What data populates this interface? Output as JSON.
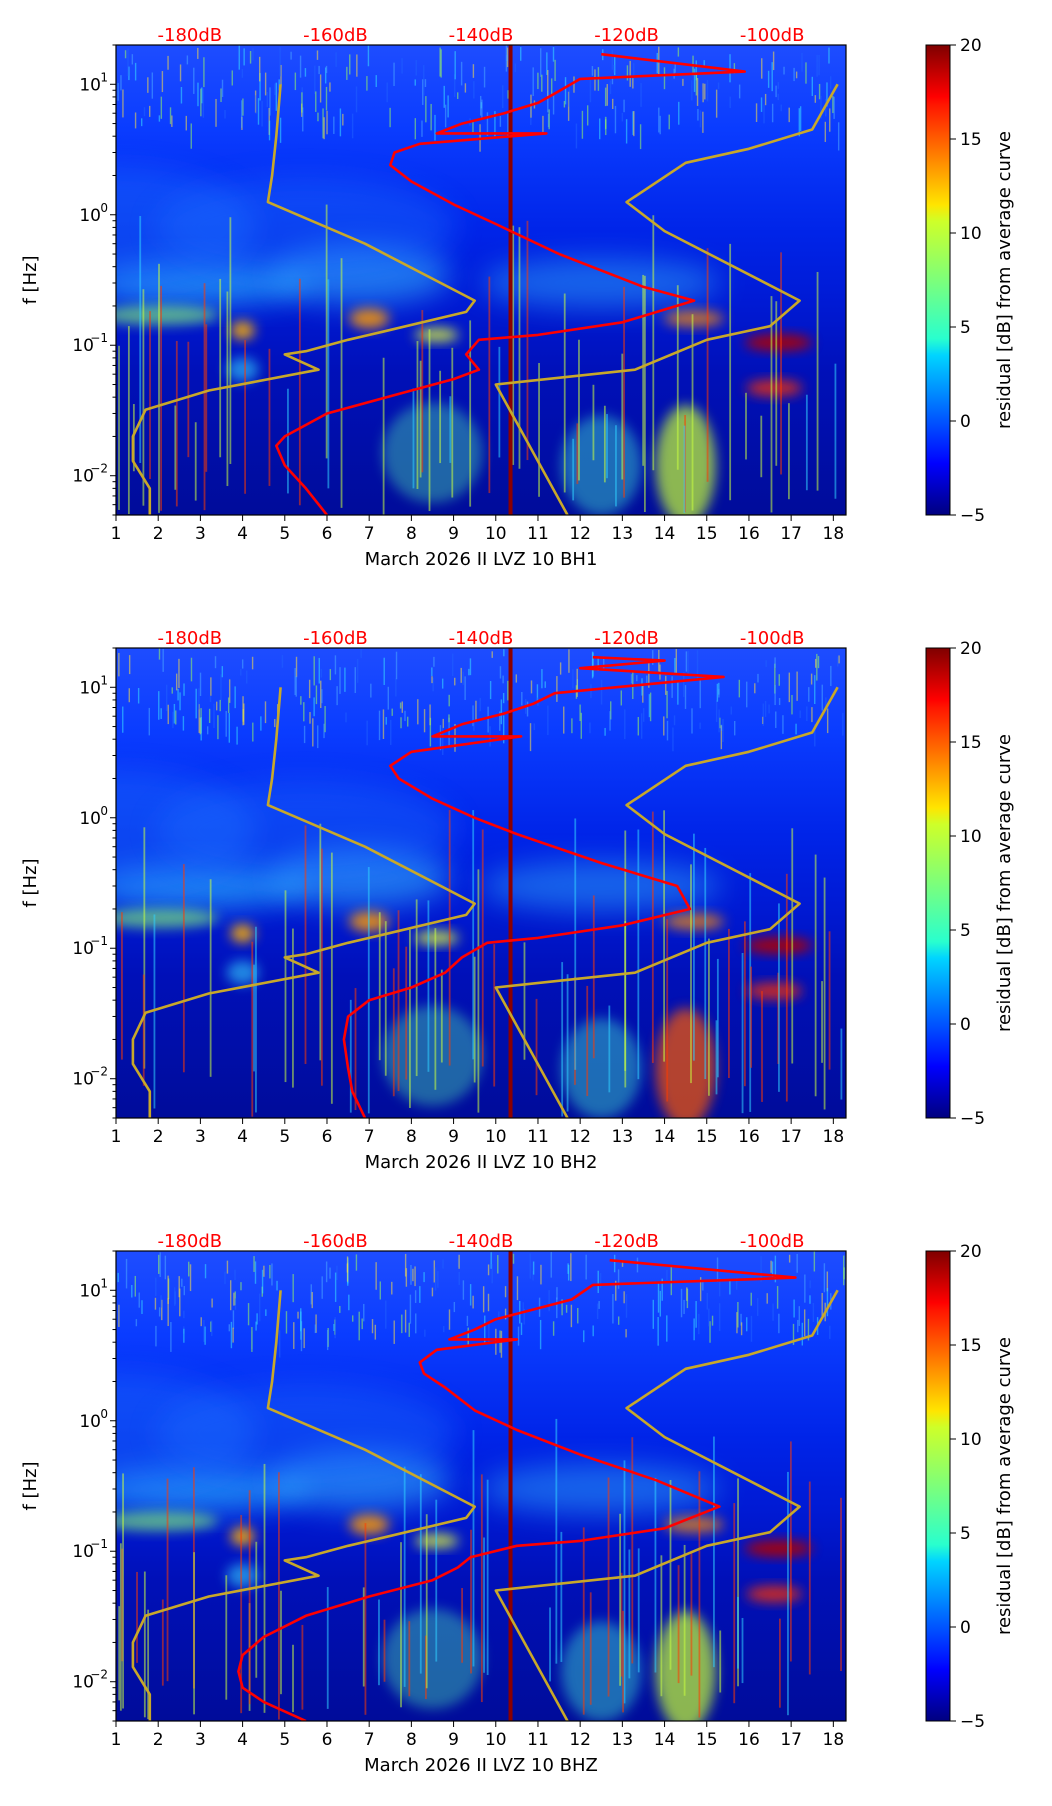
{
  "chart_data": [
    {
      "type": "heatmap",
      "xlabel": "March 2026 II LVZ 10 BH1",
      "ylabel": "f [Hz]",
      "xlim": [
        1,
        18.3
      ],
      "ylim": [
        0.005,
        20
      ],
      "y_scale": "log",
      "x_ticks": [
        "1",
        "2",
        "3",
        "4",
        "5",
        "6",
        "7",
        "8",
        "9",
        "10",
        "11",
        "12",
        "13",
        "14",
        "15",
        "16",
        "17",
        "18"
      ],
      "y_ticks": [
        {
          "value": 0.01,
          "base": "10",
          "exp": "−2"
        },
        {
          "value": 0.1,
          "base": "10",
          "exp": "−1"
        },
        {
          "value": 1,
          "base": "10",
          "exp": "0"
        },
        {
          "value": 10,
          "base": "10",
          "exp": "1"
        }
      ],
      "top_labels": [
        {
          "x": 2.75,
          "text": "-180dB"
        },
        {
          "x": 6.2,
          "text": "-160dB"
        },
        {
          "x": 9.65,
          "text": "-140dB"
        },
        {
          "x": 13.1,
          "text": "-120dB"
        },
        {
          "x": 16.55,
          "text": "-100dB"
        }
      ],
      "colorbar": {
        "label": "residual [dB] from average curve",
        "min": -5,
        "max": 20,
        "ticks": [
          "−5",
          "0",
          "5",
          "10",
          "15",
          "20"
        ]
      },
      "vertical_line_x": 10.35,
      "series": [
        {
          "color": "#c8a82a",
          "x": [
            4.9,
            4.8,
            4.7,
            4.6,
            6.9,
            9.5,
            9.3,
            7.0,
            6.5,
            5.5,
            5.0,
            5.8,
            3.2,
            1.7,
            1.4,
            1.4,
            1.8,
            1.8
          ],
          "y": [
            10,
            4,
            2,
            1.25,
            0.6,
            0.22,
            0.18,
            0.12,
            0.11,
            0.09,
            0.085,
            0.065,
            0.045,
            0.032,
            0.02,
            0.013,
            0.008,
            0.005
          ]
        },
        {
          "color": "#c8a82a",
          "x": [
            18.1,
            17.5,
            16.0,
            14.5,
            13.1,
            14.0,
            17.2,
            16.5,
            15.0,
            13.3,
            10.0,
            11.7
          ],
          "y": [
            10,
            4.5,
            3.2,
            2.5,
            1.25,
            0.75,
            0.22,
            0.14,
            0.11,
            0.065,
            0.05,
            0.005
          ]
        },
        {
          "color": "#ff0000",
          "x": [
            12.5,
            15.9,
            12.0,
            11.4,
            11.0,
            10.2,
            9.2,
            8.6,
            11.2,
            8.2,
            7.6,
            7.5,
            8.0,
            9.0,
            10.0,
            11.5,
            13.5,
            14.7,
            13.0,
            11.0,
            9.6,
            9.3,
            9.6,
            9.0,
            8.0,
            6.0,
            5.0,
            4.8,
            5.0,
            5.5,
            6.0
          ],
          "y": [
            17,
            12.5,
            11,
            8.5,
            7.2,
            6,
            5,
            4.2,
            4.2,
            3.5,
            3.0,
            2.4,
            1.8,
            1.2,
            0.85,
            0.5,
            0.28,
            0.22,
            0.15,
            0.12,
            0.11,
            0.085,
            0.065,
            0.055,
            0.045,
            0.03,
            0.02,
            0.017,
            0.012,
            0.008,
            0.005
          ]
        }
      ]
    },
    {
      "type": "heatmap",
      "xlabel": "March 2026 II LVZ 10 BH2",
      "ylabel": "f [Hz]",
      "xlim": [
        1,
        18.3
      ],
      "ylim": [
        0.005,
        20
      ],
      "y_scale": "log",
      "x_ticks": [
        "1",
        "2",
        "3",
        "4",
        "5",
        "6",
        "7",
        "8",
        "9",
        "10",
        "11",
        "12",
        "13",
        "14",
        "15",
        "16",
        "17",
        "18"
      ],
      "y_ticks": [
        {
          "value": 0.01,
          "base": "10",
          "exp": "−2"
        },
        {
          "value": 0.1,
          "base": "10",
          "exp": "−1"
        },
        {
          "value": 1,
          "base": "10",
          "exp": "0"
        },
        {
          "value": 10,
          "base": "10",
          "exp": "1"
        }
      ],
      "top_labels": [
        {
          "x": 2.75,
          "text": "-180dB"
        },
        {
          "x": 6.2,
          "text": "-160dB"
        },
        {
          "x": 9.65,
          "text": "-140dB"
        },
        {
          "x": 13.1,
          "text": "-120dB"
        },
        {
          "x": 16.55,
          "text": "-100dB"
        }
      ],
      "colorbar": {
        "label": "residual [dB] from average curve",
        "min": -5,
        "max": 20,
        "ticks": [
          "−5",
          "0",
          "5",
          "10",
          "15",
          "20"
        ]
      },
      "vertical_line_x": 10.35,
      "series": [
        {
          "color": "#c8a82a",
          "x": [
            4.9,
            4.8,
            4.7,
            4.6,
            6.9,
            9.5,
            9.3,
            7.0,
            6.5,
            5.5,
            5.0,
            5.8,
            3.2,
            1.7,
            1.4,
            1.4,
            1.8,
            1.8
          ],
          "y": [
            10,
            4,
            2,
            1.25,
            0.6,
            0.22,
            0.18,
            0.12,
            0.11,
            0.09,
            0.085,
            0.065,
            0.045,
            0.032,
            0.02,
            0.013,
            0.008,
            0.005
          ]
        },
        {
          "color": "#c8a82a",
          "x": [
            18.1,
            17.5,
            16.0,
            14.5,
            13.1,
            14.0,
            17.2,
            16.5,
            15.0,
            13.3,
            10.0,
            11.7
          ],
          "y": [
            10,
            4.5,
            3.2,
            2.5,
            1.25,
            0.75,
            0.22,
            0.14,
            0.11,
            0.065,
            0.05,
            0.005
          ]
        },
        {
          "color": "#ff0000",
          "x": [
            12.3,
            14.0,
            12.0,
            15.4,
            11.4,
            10.9,
            10.2,
            9.2,
            8.5,
            10.6,
            8.0,
            7.5,
            7.7,
            8.5,
            9.5,
            10.5,
            12.5,
            14.3,
            14.6,
            13.0,
            11.0,
            9.8,
            9.2,
            8.8,
            8.0,
            7.0,
            6.5,
            6.4,
            6.5,
            6.6,
            6.9
          ],
          "y": [
            17,
            16,
            14,
            12,
            9,
            7.5,
            6.3,
            5.2,
            4.2,
            4.2,
            3.2,
            2.5,
            2.0,
            1.4,
            1.0,
            0.75,
            0.45,
            0.3,
            0.2,
            0.15,
            0.12,
            0.11,
            0.085,
            0.065,
            0.05,
            0.04,
            0.03,
            0.02,
            0.012,
            0.008,
            0.005
          ]
        }
      ]
    },
    {
      "type": "heatmap",
      "xlabel": "March 2026 II LVZ 10 BHZ",
      "ylabel": "f [Hz]",
      "xlim": [
        1,
        18.3
      ],
      "ylim": [
        0.005,
        20
      ],
      "y_scale": "log",
      "x_ticks": [
        "1",
        "2",
        "3",
        "4",
        "5",
        "6",
        "7",
        "8",
        "9",
        "10",
        "11",
        "12",
        "13",
        "14",
        "15",
        "16",
        "17",
        "18"
      ],
      "y_ticks": [
        {
          "value": 0.01,
          "base": "10",
          "exp": "−2"
        },
        {
          "value": 0.1,
          "base": "10",
          "exp": "−1"
        },
        {
          "value": 1,
          "base": "10",
          "exp": "0"
        },
        {
          "value": 10,
          "base": "10",
          "exp": "1"
        }
      ],
      "top_labels": [
        {
          "x": 2.75,
          "text": "-180dB"
        },
        {
          "x": 6.2,
          "text": "-160dB"
        },
        {
          "x": 9.65,
          "text": "-140dB"
        },
        {
          "x": 13.1,
          "text": "-120dB"
        },
        {
          "x": 16.55,
          "text": "-100dB"
        }
      ],
      "colorbar": {
        "label": "residual [dB] from average curve",
        "min": -5,
        "max": 20,
        "ticks": [
          "−5",
          "0",
          "5",
          "10",
          "15",
          "20"
        ]
      },
      "vertical_line_x": 10.35,
      "series": [
        {
          "color": "#c8a82a",
          "x": [
            4.9,
            4.8,
            4.7,
            4.6,
            6.9,
            9.5,
            9.3,
            7.0,
            6.5,
            5.5,
            5.0,
            5.8,
            3.2,
            1.7,
            1.4,
            1.4,
            1.8,
            1.8
          ],
          "y": [
            10,
            4,
            2,
            1.25,
            0.6,
            0.22,
            0.18,
            0.12,
            0.11,
            0.09,
            0.085,
            0.065,
            0.045,
            0.032,
            0.02,
            0.013,
            0.008,
            0.005
          ]
        },
        {
          "color": "#c8a82a",
          "x": [
            18.1,
            17.5,
            16.0,
            14.5,
            13.1,
            14.0,
            17.2,
            16.5,
            15.0,
            13.3,
            10.0,
            11.7
          ],
          "y": [
            10,
            4.5,
            3.2,
            2.5,
            1.25,
            0.75,
            0.22,
            0.14,
            0.11,
            0.065,
            0.05,
            0.005
          ]
        },
        {
          "color": "#ff0000",
          "x": [
            12.7,
            17.1,
            12.3,
            11.8,
            10.8,
            10.0,
            9.5,
            8.9,
            10.5,
            8.6,
            8.2,
            8.3,
            8.8,
            9.5,
            10.5,
            12.0,
            13.8,
            15.3,
            14.0,
            12.0,
            10.5,
            9.4,
            9.1,
            8.5,
            7.0,
            5.5,
            4.5,
            4.0,
            3.9,
            4.0,
            4.5,
            5.5
          ],
          "y": [
            17,
            12.5,
            11,
            8.5,
            7,
            6,
            5,
            4.2,
            4.2,
            3.5,
            2.8,
            2.3,
            1.8,
            1.2,
            0.85,
            0.55,
            0.35,
            0.22,
            0.15,
            0.12,
            0.11,
            0.09,
            0.075,
            0.06,
            0.045,
            0.032,
            0.022,
            0.016,
            0.012,
            0.009,
            0.007,
            0.005
          ]
        }
      ]
    }
  ]
}
